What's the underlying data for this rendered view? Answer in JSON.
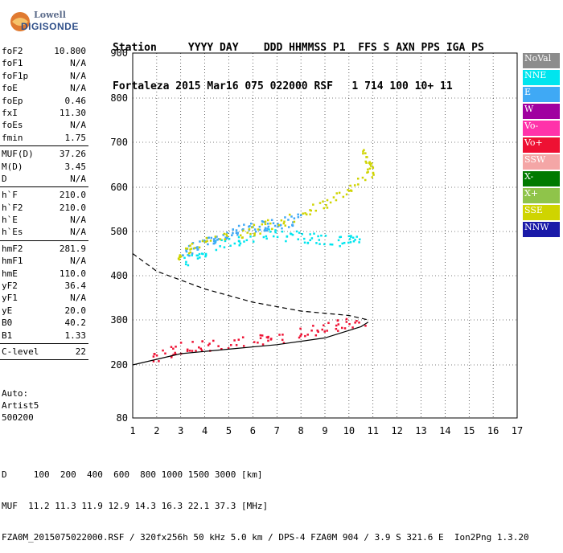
{
  "logo": {
    "brand": "Lowell",
    "product": "DIGISONDE"
  },
  "header": {
    "line1": "Station     YYYY DAY    DDD HHMMSS P1  FFS S AXN PPS IGA PS",
    "line2": "Fortaleza 2015 Mar16 075 022000 RSF   1 714 100 10+ 11"
  },
  "params": [
    {
      "k": "foF2",
      "v": "10.800"
    },
    {
      "k": "foF1",
      "v": "N/A"
    },
    {
      "k": "foF1p",
      "v": "N/A"
    },
    {
      "k": "foE",
      "v": "N/A"
    },
    {
      "k": "foEp",
      "v": "0.46"
    },
    {
      "k": "fxI",
      "v": "11.30"
    },
    {
      "k": "foEs",
      "v": "N/A"
    },
    {
      "k": "fmin",
      "v": "1.75"
    },
    {
      "sep": true
    },
    {
      "k": "MUF(D)",
      "v": "37.26"
    },
    {
      "k": "M(D)",
      "v": "3.45"
    },
    {
      "k": "D",
      "v": "N/A"
    },
    {
      "sep": true
    },
    {
      "k": "h`F",
      "v": "210.0"
    },
    {
      "k": "h`F2",
      "v": "210.0"
    },
    {
      "k": "h`E",
      "v": "N/A"
    },
    {
      "k": "h`Es",
      "v": "N/A"
    },
    {
      "sep": true
    },
    {
      "k": "hmF2",
      "v": "281.9"
    },
    {
      "k": "hmF1",
      "v": "N/A"
    },
    {
      "k": "hmE",
      "v": "110.0"
    },
    {
      "k": "yF2",
      "v": "36.4"
    },
    {
      "k": "yF1",
      "v": "N/A"
    },
    {
      "k": "yE",
      "v": "20.0"
    },
    {
      "k": "B0",
      "v": "40.2"
    },
    {
      "k": "B1",
      "v": "1.33"
    },
    {
      "sep": true
    },
    {
      "k": "C-level",
      "v": "22"
    },
    {
      "sep": true
    }
  ],
  "auto": {
    "l1": "Auto:",
    "l2": "Artist5",
    "l3": "500200"
  },
  "legend": [
    {
      "label": "NoVal",
      "color": "#8c8c8c"
    },
    {
      "label": "NNE",
      "color": "#00e5ee"
    },
    {
      "label": "E",
      "color": "#3fa9f5"
    },
    {
      "label": "W",
      "color": "#a000a0"
    },
    {
      "label": "Vo-",
      "color": "#ff33aa"
    },
    {
      "label": "Vo+",
      "color": "#ee1133"
    },
    {
      "label": "SSW",
      "color": "#f4a6a6"
    },
    {
      "label": "X-",
      "color": "#007a00"
    },
    {
      "label": "X+",
      "color": "#8fc44a"
    },
    {
      "label": "SSE",
      "color": "#cfd400"
    },
    {
      "label": "NNW",
      "color": "#1a1aa8"
    }
  ],
  "footer": {
    "l1": "D     100  200  400  600  800 1000 1500 3000 [km]",
    "l2": "MUF  11.2 11.3 11.9 12.9 14.3 16.3 22.1 37.3 [MHz]",
    "l3": "FZA0M_2015075022000.RSF / 320fx256h 50 kHz 5.0 km / DPS-4 FZA0M 904 / 3.9 S 321.6 E  Ion2Png 1.3.20"
  },
  "chart_data": {
    "type": "scatter",
    "title": "",
    "xlabel": "",
    "ylabel": "",
    "xlim": [
      1,
      17
    ],
    "ylim": [
      80,
      900
    ],
    "y_scale": "nonlinear",
    "x_ticks": [
      1,
      2,
      3,
      4,
      5,
      6,
      7,
      8,
      9,
      10,
      11,
      12,
      13,
      14,
      15,
      16,
      17
    ],
    "y_ticks": [
      80,
      200,
      300,
      400,
      500,
      600,
      700,
      800,
      900
    ],
    "grid": true,
    "series": [
      {
        "name": "NNE",
        "trace": [
          [
            3.0,
            430
          ],
          [
            4.5,
            470
          ],
          [
            6.5,
            495
          ],
          [
            8.0,
            490
          ],
          [
            9.5,
            480
          ],
          [
            10.5,
            480
          ]
        ]
      },
      {
        "name": "E",
        "trace": [
          [
            3.0,
            450
          ],
          [
            4.0,
            480
          ],
          [
            5.0,
            500
          ],
          [
            6.0,
            510
          ],
          [
            7.0,
            520
          ],
          [
            8.0,
            530
          ]
        ]
      },
      {
        "name": "SSE",
        "trace": [
          [
            2.8,
            445
          ],
          [
            4.0,
            480
          ],
          [
            6.0,
            505
          ],
          [
            8.0,
            540
          ],
          [
            9.5,
            580
          ],
          [
            11.0,
            640
          ],
          [
            10.5,
            680
          ]
        ]
      },
      {
        "name": "Vo+",
        "trace": [
          [
            1.7,
            215
          ],
          [
            3.0,
            240
          ],
          [
            5.0,
            250
          ],
          [
            7.0,
            260
          ],
          [
            9.0,
            285
          ],
          [
            10.8,
            300
          ]
        ]
      }
    ],
    "profile_solid": [
      [
        1.0,
        200
      ],
      [
        3.0,
        225
      ],
      [
        5.0,
        235
      ],
      [
        7.0,
        245
      ],
      [
        9.0,
        260
      ],
      [
        10.5,
        285
      ],
      [
        10.8,
        295
      ]
    ],
    "profile_dashed": [
      [
        1.0,
        450
      ],
      [
        2.0,
        410
      ],
      [
        4.0,
        370
      ],
      [
        6.0,
        340
      ],
      [
        8.0,
        320
      ],
      [
        10.0,
        310
      ],
      [
        10.8,
        300
      ]
    ]
  }
}
